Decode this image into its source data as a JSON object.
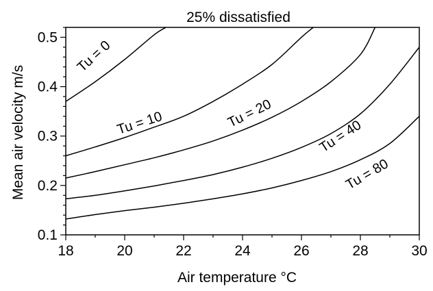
{
  "chart_data": {
    "type": "line",
    "title": "25% dissatisfied",
    "xlabel": "Air temperature °C",
    "ylabel": "Mean air velocity m/s",
    "xlim": [
      18,
      30
    ],
    "ylim": [
      0.1,
      0.52
    ],
    "x_ticks": [
      18,
      20,
      22,
      24,
      26,
      28,
      30
    ],
    "x_tick_labels": [
      "18",
      "20",
      "22",
      "24",
      "26",
      "28",
      "30"
    ],
    "y_ticks": [
      0.1,
      0.2,
      0.3,
      0.4,
      0.5
    ],
    "y_tick_labels": [
      "0.1",
      "0.2",
      "0.3",
      "0.4",
      "0.5"
    ],
    "grid": false,
    "series": [
      {
        "name": "Tu = 0",
        "x": [
          18,
          19,
          20,
          21,
          21.4
        ],
        "y": [
          0.37,
          0.41,
          0.455,
          0.505,
          0.52
        ]
      },
      {
        "name": "Tu = 10",
        "x": [
          18,
          19,
          20,
          21,
          22,
          23,
          24,
          25,
          26,
          26.4
        ],
        "y": [
          0.26,
          0.278,
          0.297,
          0.318,
          0.34,
          0.37,
          0.405,
          0.445,
          0.5,
          0.52
        ]
      },
      {
        "name": "Tu = 20",
        "x": [
          18,
          19,
          20,
          21,
          22,
          23,
          24,
          25,
          26,
          27,
          28,
          28.5
        ],
        "y": [
          0.215,
          0.228,
          0.242,
          0.256,
          0.272,
          0.29,
          0.312,
          0.338,
          0.37,
          0.41,
          0.465,
          0.52
        ]
      },
      {
        "name": "Tu = 40",
        "x": [
          18,
          19,
          20,
          21,
          22,
          23,
          24,
          25,
          26,
          27,
          28,
          29,
          30
        ],
        "y": [
          0.173,
          0.18,
          0.189,
          0.199,
          0.21,
          0.222,
          0.237,
          0.255,
          0.277,
          0.305,
          0.345,
          0.405,
          0.48
        ]
      },
      {
        "name": "Tu = 80",
        "x": [
          18,
          19,
          20,
          21,
          22,
          23,
          24,
          25,
          26,
          27,
          28,
          29,
          30
        ],
        "y": [
          0.132,
          0.141,
          0.149,
          0.156,
          0.164,
          0.173,
          0.183,
          0.195,
          0.21,
          0.228,
          0.252,
          0.285,
          0.34
        ]
      }
    ],
    "curve_labels": [
      {
        "text": "Tu = 0",
        "x": 19.05,
        "y": 0.455,
        "angle": -42
      },
      {
        "text": "Tu = 10",
        "x": 20.55,
        "y": 0.318,
        "angle": -18
      },
      {
        "text": "Tu = 20",
        "x": 24.3,
        "y": 0.338,
        "angle": -26
      },
      {
        "text": "Tu = 40",
        "x": 27.4,
        "y": 0.292,
        "angle": -33
      },
      {
        "text": "Tu = 80",
        "x": 28.3,
        "y": 0.215,
        "angle": -30
      }
    ]
  }
}
